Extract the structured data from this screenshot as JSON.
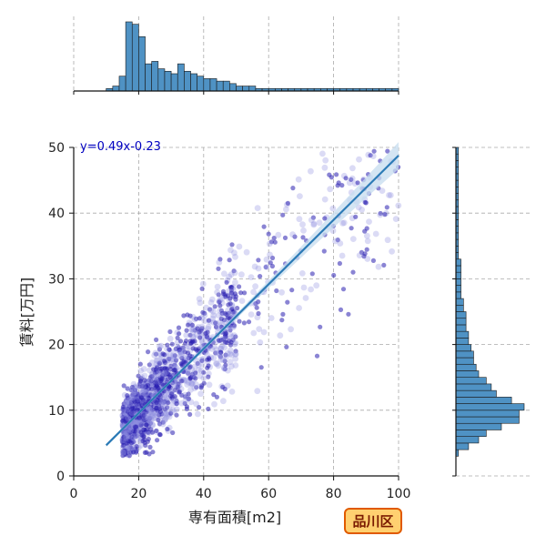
{
  "chart_data": {
    "type": "scatter",
    "title": "",
    "xlabel": "専有面積[m2]",
    "ylabel": "賃料[万円]",
    "xlim": [
      0,
      100
    ],
    "ylim": [
      0,
      50
    ],
    "x_ticks": [
      0,
      20,
      40,
      60,
      80,
      100
    ],
    "y_ticks": [
      0,
      10,
      20,
      30,
      40,
      50
    ],
    "grid": true,
    "annotation": "y=0.49x-0.23",
    "badge": "品川区",
    "regression": {
      "slope": 0.49,
      "intercept": -0.23,
      "x_range": [
        10,
        100
      ]
    },
    "scatter_summary": {
      "x_range": [
        10,
        100
      ],
      "y_range": [
        3,
        50
      ],
      "point_color": "#3a30c0"
    },
    "marginal_x_hist": {
      "type": "bar",
      "bin_edges_start": 10,
      "bin_width": 2,
      "counts": [
        1,
        2,
        6,
        28,
        27,
        22,
        11,
        12,
        9,
        8,
        7,
        11,
        8,
        7,
        6,
        5,
        5,
        4,
        4,
        3,
        2,
        2,
        2,
        1,
        1,
        1,
        1,
        1,
        1,
        1,
        1,
        1,
        1,
        1,
        1,
        1,
        1,
        1,
        1,
        1,
        1,
        1,
        1,
        1,
        1
      ]
    },
    "marginal_y_hist": {
      "type": "bar",
      "bin_edges_start": 3,
      "bin_width": 1,
      "counts": [
        1,
        5,
        9,
        12,
        18,
        25,
        25,
        27,
        22,
        16,
        14,
        12,
        9,
        8,
        7,
        7,
        6,
        5,
        5,
        4,
        4,
        4,
        3,
        3,
        2,
        2,
        2,
        2,
        2,
        2,
        1,
        1,
        1,
        1,
        1,
        1,
        1,
        1,
        1,
        1,
        1,
        1,
        1,
        1,
        1,
        1,
        1
      ]
    },
    "colors": {
      "hist_fill": "#4f92c4",
      "hist_edge": "#1a1a1a",
      "line": "#2c7bb6",
      "ci_band": "#c6dcef",
      "badge_fill": "#ffd070",
      "badge_edge": "#e05a00"
    }
  }
}
